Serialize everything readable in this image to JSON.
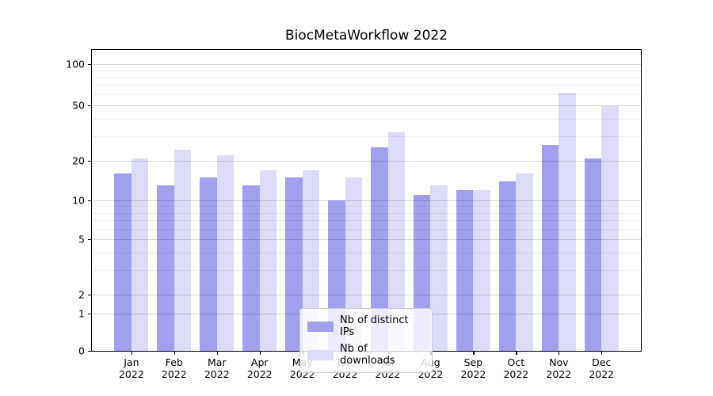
{
  "chart_data": {
    "type": "bar",
    "title": "BiocMetaWorkflow 2022",
    "categories": [
      "Jan",
      "Feb",
      "Mar",
      "Apr",
      "May",
      "Jun",
      "Jul",
      "Aug",
      "Sep",
      "Oct",
      "Nov",
      "Dec"
    ],
    "x_year": "2022",
    "series": [
      {
        "name": "Nb of distinct IPs",
        "color": "#a0a0ee",
        "values": [
          16,
          13,
          15,
          13,
          15,
          10,
          25,
          11,
          12,
          14,
          26,
          21
        ]
      },
      {
        "name": "Nb of downloads",
        "color": "#dcdcf8",
        "values": [
          21,
          24,
          22,
          17,
          17,
          15,
          32,
          13,
          12,
          16,
          62,
          49
        ]
      }
    ],
    "y_tick_labels": [
      "0",
      "1",
      "2",
      "5",
      "10",
      "20",
      "50",
      "100"
    ],
    "y_tick_values": [
      0,
      1,
      2,
      5,
      10,
      20,
      50,
      100
    ],
    "y_scale": "symlog",
    "ylim": [
      0,
      115
    ],
    "xlabel": "",
    "ylabel": "",
    "grid": true,
    "legend_position": "lower center"
  }
}
